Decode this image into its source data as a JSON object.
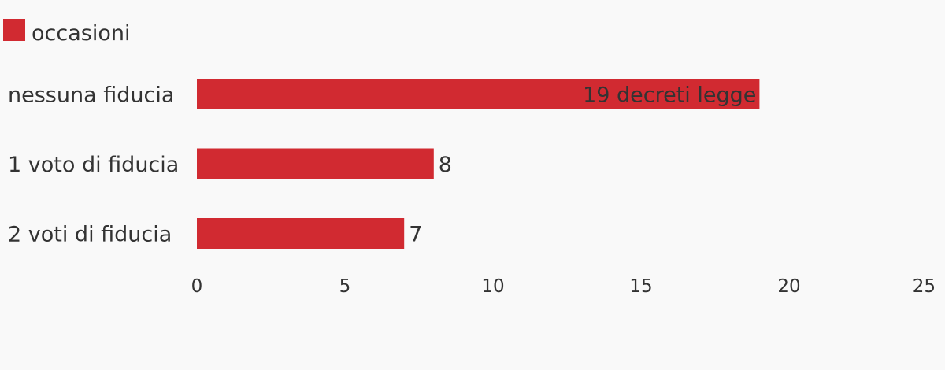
{
  "chart_data": {
    "type": "bar",
    "orientation": "horizontal",
    "categories": [
      "nessuna fiducia",
      "1 voto di fiducia",
      "2 voti di fiducia"
    ],
    "series": [
      {
        "name": "occasioni",
        "values": [
          19,
          8,
          7
        ],
        "value_labels": [
          "19 decreti legge",
          "8",
          "7"
        ]
      }
    ],
    "xlim": [
      0,
      25
    ],
    "xticks": [
      0,
      5,
      10,
      15,
      20,
      25
    ],
    "tick_labels": [
      "0",
      "5",
      "10",
      "15",
      "20",
      "25"
    ],
    "grid": false,
    "legend_position": "top-left"
  },
  "colors": {
    "bar": "#d12a31",
    "text": "#333333",
    "background": "#f9f9f9"
  }
}
